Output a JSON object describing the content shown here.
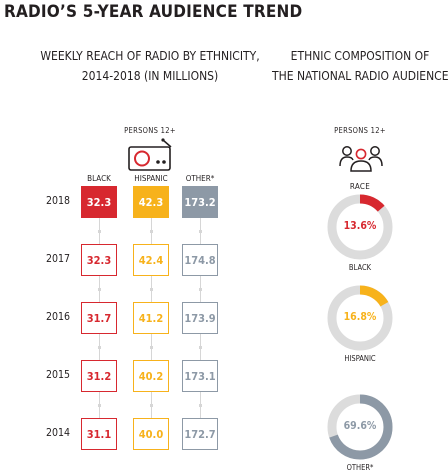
{
  "title": "RADIO’S 5-YEAR AUDIENCE TREND",
  "left_header": [
    "WEEKLY REACH OF RADIO BY ETHNICITY,",
    "2014-2018 (IN MILLIONS)"
  ],
  "right_header": [
    "ETHNIC COMPOSITION OF",
    "THE NATIONAL RADIO AUDIENCE"
  ],
  "left_persons": "PERSONS 12+",
  "right_persons": "PERSONS 12+",
  "race_label": "RACE",
  "icons": {
    "left": "radio-icon",
    "right": "people-group-icon"
  },
  "colors": {
    "black": "#d7282f",
    "hispanic": "#f7b21b",
    "other": "#8d99a6",
    "track": "#dcdcdc"
  },
  "chart_data": [
    {
      "type": "table",
      "title": "WEEKLY REACH OF RADIO BY ETHNICITY, 2014-2018 (IN MILLIONS)",
      "columns": [
        "BLACK",
        "HISPANIC",
        "OTHER*"
      ],
      "rows": [
        {
          "year": "2018",
          "values": [
            "32.3",
            "42.3",
            "173.2"
          ]
        },
        {
          "year": "2017",
          "values": [
            "32.3",
            "42.4",
            "174.8"
          ]
        },
        {
          "year": "2016",
          "values": [
            "31.7",
            "41.2",
            "173.9"
          ]
        },
        {
          "year": "2015",
          "values": [
            "31.2",
            "40.2",
            "173.1"
          ]
        },
        {
          "year": "2014",
          "values": [
            "31.1",
            "40.0",
            "172.7"
          ]
        }
      ]
    },
    {
      "type": "pie",
      "title": "ETHNIC COMPOSITION OF THE NATIONAL RADIO AUDIENCE",
      "slices": [
        {
          "label": "BLACK",
          "value": 13.6,
          "display": "13.6%"
        },
        {
          "label": "HISPANIC",
          "value": 16.8,
          "display": "16.8%"
        },
        {
          "label": "OTHER*",
          "value": 69.6,
          "display": "69.6%"
        }
      ]
    }
  ]
}
